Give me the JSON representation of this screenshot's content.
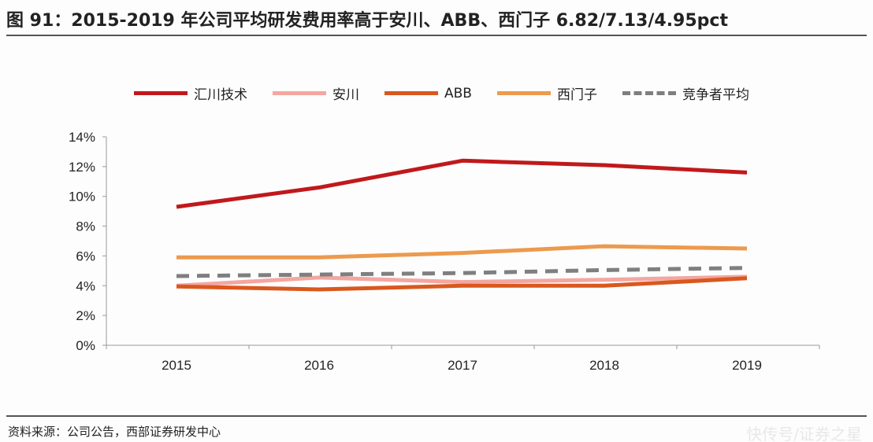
{
  "title": "图 91：2015-2019 年公司平均研发费用率高于安川、ABB、西门子 6.82/7.13/4.95pct",
  "source": "资料来源：公司公告，西部证券研发中心",
  "watermark": "快传号/证券之星",
  "chart_data": {
    "type": "line",
    "title": "",
    "xlabel": "",
    "ylabel": "",
    "categories": [
      "2015",
      "2016",
      "2017",
      "2018",
      "2019"
    ],
    "ylim": [
      0,
      14
    ],
    "yticks": [
      "0%",
      "2%",
      "4%",
      "6%",
      "8%",
      "10%",
      "12%",
      "14%"
    ],
    "grid": false,
    "legend": "top",
    "series": [
      {
        "name": "汇川技术",
        "color": "#c0191c",
        "dashed": false,
        "values": [
          9.3,
          10.6,
          12.4,
          12.1,
          11.6
        ]
      },
      {
        "name": "安川",
        "color": "#f4a6a0",
        "dashed": false,
        "values": [
          4.0,
          4.55,
          4.25,
          4.4,
          4.6
        ]
      },
      {
        "name": "ABB",
        "color": "#d9581e",
        "dashed": false,
        "values": [
          3.95,
          3.75,
          4.0,
          4.0,
          4.5
        ]
      },
      {
        "name": "西门子",
        "color": "#ec9a4e",
        "dashed": false,
        "values": [
          5.9,
          5.9,
          6.2,
          6.65,
          6.5
        ]
      },
      {
        "name": "竞争者平均",
        "color": "#7f7f7f",
        "dashed": true,
        "values": [
          4.65,
          4.75,
          4.85,
          5.05,
          5.2
        ]
      }
    ]
  }
}
